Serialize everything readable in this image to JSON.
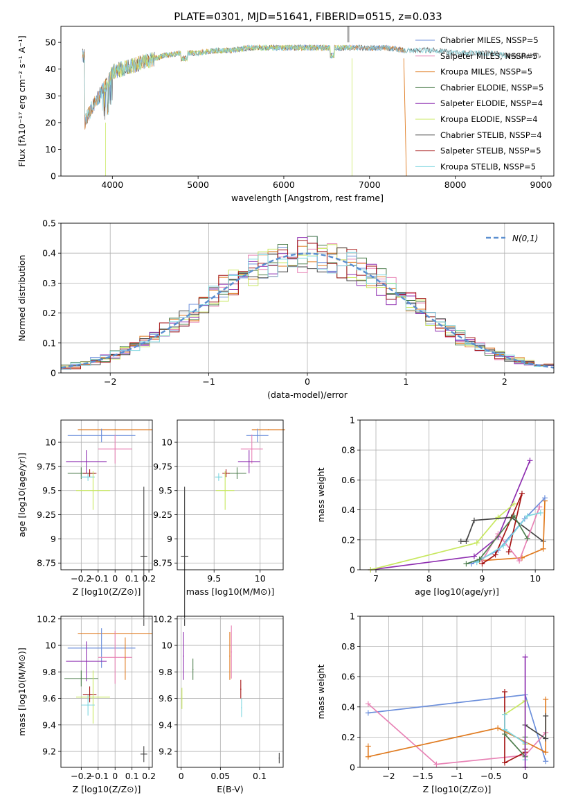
{
  "figure_title": "PLATE=0301, MJD=51641, FIBERID=0515, z=0.033",
  "colors": {
    "chabrier_miles": "#6c8fdb",
    "salpeter_miles": "#e882b5",
    "kroupa_miles": "#e07b20",
    "chabrier_elodie": "#4f7f4f",
    "salpeter_elodie": "#8e2eb0",
    "kroupa_elodie": "#c8e860",
    "chabrier_stelib": "#444444",
    "salpeter_stelib": "#a51515",
    "kroupa_stelib": "#7fd6e0",
    "normal": "#5b8fd0"
  },
  "chart_data": [
    {
      "id": "spectrum",
      "type": "line",
      "xlabel": "wavelength [Angstrom, rest frame]",
      "ylabel": "Flux [fλ10⁻¹⁷ erg cm⁻² s⁻¹ A⁻¹]",
      "xlim": [
        3400,
        9150
      ],
      "ylim": [
        0,
        56
      ],
      "xticks": [
        4000,
        5000,
        6000,
        7000,
        8000,
        9000
      ],
      "yticks": [
        0,
        10,
        20,
        30,
        40,
        50
      ],
      "grid": false,
      "legend_placement": "top-right",
      "legend": [
        "Chabrier MILES, NSSP=5",
        "Salpeter MILES, NSSP=5",
        "Kroupa MILES, NSSP=5",
        "Chabrier ELODIE, NSSP=5",
        "Salpeter ELODIE, NSSP=4",
        "Kroupa ELODIE, NSSP=4",
        "Chabrier STELIB, NSSP=4",
        "Salpeter STELIB, NSSP=5",
        "Kroupa STELIB, NSSP=5"
      ],
      "series": [
        {
          "name": "Chabrier STELIB, NSSP=4",
          "color_key": "chabrier_stelib",
          "x_range": [
            3650,
            9000
          ]
        },
        {
          "name": "Chabrier MILES, NSSP=5",
          "color_key": "chabrier_miles",
          "x_range": [
            3650,
            7400
          ]
        },
        {
          "name": "Kroupa MILES, NSSP=5",
          "color_key": "kroupa_miles",
          "x_range": [
            3650,
            7420
          ]
        },
        {
          "name": "Kroupa ELODIE, NSSP=4",
          "color_key": "kroupa_elodie",
          "x_range": [
            3900,
            6800
          ]
        },
        {
          "name": "Kroupa STELIB, NSSP=5",
          "color_key": "kroupa_stelib",
          "x_range": [
            3650,
            8600
          ]
        }
      ],
      "envelope": {
        "x": [
          3680,
          3750,
          3800,
          3850,
          3900,
          3950,
          4000,
          4100,
          4200,
          4300,
          4400,
          4600,
          4800,
          5000,
          5200,
          5400,
          5600,
          5800,
          6000,
          6200,
          6400,
          6600,
          6800,
          7000,
          7200,
          7400,
          7600,
          7800,
          8000,
          8200,
          8400,
          8600,
          8800,
          9000
        ],
        "y": [
          20,
          25,
          28,
          30,
          33,
          35,
          39,
          40,
          41,
          42,
          43,
          45,
          46,
          46,
          47,
          47,
          48,
          48,
          48,
          48,
          48,
          48,
          48,
          48,
          48,
          47,
          47,
          47,
          46,
          46,
          46,
          45,
          45,
          45
        ]
      }
    },
    {
      "id": "residuals",
      "type": "bar",
      "xlabel": "(data-model)/error",
      "ylabel": "Normed distribution",
      "xlim": [
        -2.5,
        2.5
      ],
      "ylim": [
        0,
        0.5
      ],
      "xticks": [
        -2,
        -1,
        0,
        1,
        2
      ],
      "yticks": [
        0.0,
        0.1,
        0.2,
        0.3,
        0.4,
        0.5
      ],
      "grid": true,
      "legend_placement": "top-right",
      "legend": [
        "N(0,1)"
      ],
      "bin_width": 0.1
    },
    {
      "id": "age-vs-Z",
      "type": "scatter",
      "xlabel": "Z [log10(Z/Z⊙)]",
      "ylabel": "age  [log10(age/yr)]",
      "xlim": [
        -0.32,
        0.22
      ],
      "ylim": [
        8.68,
        10.23
      ],
      "xticks": [
        -0.2,
        -0.1,
        0.0,
        0.1,
        0.2
      ],
      "yticks": [
        8.75,
        9.0,
        9.25,
        9.5,
        9.75,
        10.0
      ],
      "grid": true,
      "points": [
        {
          "series": "Kroupa MILES",
          "x": 0.0,
          "xerr": 0.22,
          "y": 10.13,
          "yerr": 0.0
        },
        {
          "series": "Chabrier MILES",
          "x": -0.08,
          "xerr": 0.2,
          "y": 10.07,
          "yerr": 0.07
        },
        {
          "series": "Salpeter MILES",
          "x": 0.0,
          "xerr": 0.1,
          "y": 9.93,
          "yerr": 0.15
        },
        {
          "series": "Salpeter ELODIE",
          "x": -0.17,
          "xerr": 0.12,
          "y": 9.8,
          "yerr": 0.12
        },
        {
          "series": "Chabrier ELODIE",
          "x": -0.2,
          "xerr": 0.08,
          "y": 9.68,
          "yerr": 0.06
        },
        {
          "series": "Salpeter STELIB",
          "x": -0.15,
          "xerr": 0.04,
          "y": 9.68,
          "yerr": 0.04
        },
        {
          "series": "Kroupa STELIB",
          "x": -0.16,
          "xerr": 0.04,
          "y": 9.64,
          "yerr": 0.04
        },
        {
          "series": "Kroupa ELODIE",
          "x": -0.13,
          "xerr": 0.1,
          "y": 9.5,
          "yerr": 0.2
        },
        {
          "series": "Chabrier STELIB",
          "x": 0.17,
          "xerr": 0.02,
          "y": 8.82,
          "yerr": 0.72
        }
      ]
    },
    {
      "id": "age-vs-mass",
      "type": "scatter",
      "xlabel": "mass [log10(M/M⊙)]",
      "ylabel": "",
      "xlim": [
        9.1,
        10.25
      ],
      "ylim": [
        8.68,
        10.23
      ],
      "xticks": [
        9.5,
        10.0
      ],
      "yticks": [
        8.75,
        9.0,
        9.25,
        9.5,
        9.75,
        10.0
      ],
      "grid": true,
      "points": [
        {
          "series": "Kroupa MILES",
          "x": 10.09,
          "xerr": 0.18,
          "y": 10.13,
          "yerr": 0.0
        },
        {
          "series": "Chabrier MILES",
          "x": 9.97,
          "xerr": 0.12,
          "y": 10.07,
          "yerr": 0.07
        },
        {
          "series": "Salpeter MILES",
          "x": 9.91,
          "xerr": 0.12,
          "y": 9.93,
          "yerr": 0.15
        },
        {
          "series": "Salpeter ELODIE",
          "x": 9.88,
          "xerr": 0.12,
          "y": 9.8,
          "yerr": 0.12
        },
        {
          "series": "Chabrier ELODIE",
          "x": 9.75,
          "xerr": 0.1,
          "y": 9.68,
          "yerr": 0.06
        },
        {
          "series": "Salpeter STELIB",
          "x": 9.63,
          "xerr": 0.04,
          "y": 9.68,
          "yerr": 0.04
        },
        {
          "series": "Kroupa STELIB",
          "x": 9.55,
          "xerr": 0.04,
          "y": 9.64,
          "yerr": 0.04
        },
        {
          "series": "Kroupa ELODIE",
          "x": 9.62,
          "xerr": 0.1,
          "y": 9.5,
          "yerr": 0.2
        },
        {
          "series": "Chabrier STELIB",
          "x": 9.18,
          "xerr": 0.04,
          "y": 8.82,
          "yerr": 0.72
        }
      ]
    },
    {
      "id": "massweight-vs-age",
      "type": "line",
      "xlabel": "age  [log10(age/yr)]",
      "ylabel": "mass weight",
      "xlim": [
        6.7,
        10.35
      ],
      "ylim": [
        0.0,
        1.0
      ],
      "xticks": [
        7,
        8,
        9,
        10
      ],
      "yticks": [
        0.0,
        0.2,
        0.4,
        0.6,
        0.8,
        1.0
      ],
      "grid": true,
      "series": [
        {
          "name": "Salpeter ELODIE",
          "color_key": "salpeter_elodie",
          "x": [
            6.9,
            8.85,
            9.3,
            9.9
          ],
          "y": [
            0.0,
            0.09,
            0.22,
            0.73
          ]
        },
        {
          "name": "Kroupa ELODIE",
          "color_key": "kroupa_elodie",
          "x": [
            6.9,
            8.9,
            9.3,
            9.6
          ],
          "y": [
            0.0,
            0.18,
            0.35,
            0.44
          ]
        },
        {
          "name": "Chabrier STELIB",
          "color_key": "chabrier_stelib",
          "x": [
            8.6,
            8.7,
            8.85,
            9.55,
            10.15
          ],
          "y": [
            0.19,
            0.19,
            0.33,
            0.35,
            0.19
          ]
        },
        {
          "name": "Kroupa MILES",
          "color_key": "kroupa_miles",
          "x": [
            8.95,
            9.75,
            10.15,
            10.18
          ],
          "y": [
            0.06,
            0.08,
            0.14,
            0.46
          ]
        },
        {
          "name": "Chabrier MILES",
          "color_key": "chabrier_miles",
          "x": [
            8.8,
            9.3,
            9.8,
            10.18
          ],
          "y": [
            0.04,
            0.13,
            0.34,
            0.48
          ]
        },
        {
          "name": "Salpeter MILES",
          "color_key": "salpeter_miles",
          "x": [
            9.0,
            9.3,
            9.7,
            10.08
          ],
          "y": [
            0.06,
            0.24,
            0.06,
            0.42
          ]
        },
        {
          "name": "Salpeter STELIB",
          "color_key": "salpeter_stelib",
          "x": [
            9.0,
            9.25,
            9.75,
            9.5
          ],
          "y": [
            0.04,
            0.1,
            0.51,
            0.12
          ]
        },
        {
          "name": "Kroupa STELIB",
          "color_key": "kroupa_stelib",
          "x": [
            8.9,
            9.4,
            9.85,
            10.1
          ],
          "y": [
            0.05,
            0.16,
            0.36,
            0.38
          ]
        },
        {
          "name": "Chabrier ELODIE",
          "color_key": "chabrier_elodie",
          "x": [
            8.7,
            8.95,
            9.6,
            9.85
          ],
          "y": [
            0.04,
            0.07,
            0.36,
            0.21
          ]
        }
      ]
    },
    {
      "id": "mass-vs-Z",
      "type": "scatter",
      "xlabel": "Z [log10(Z/Z⊙)]",
      "ylabel": "mass [log10(M/M⊙)]",
      "xlim": [
        -0.32,
        0.22
      ],
      "ylim": [
        9.08,
        10.22
      ],
      "xticks": [
        -0.2,
        -0.1,
        0.0,
        0.1,
        0.2
      ],
      "yticks": [
        9.2,
        9.4,
        9.6,
        9.8,
        10.0,
        10.2
      ],
      "grid": true,
      "points": [
        {
          "series": "Kroupa MILES",
          "x": 0.0,
          "xerr": 0.22,
          "y": 10.09,
          "yerr": 0.0
        },
        {
          "series": "Chabrier MILES",
          "x": -0.08,
          "xerr": 0.2,
          "y": 9.98,
          "yerr": 0.15
        },
        {
          "series": "Salpeter MILES",
          "x": 0.0,
          "xerr": 0.1,
          "y": 9.91,
          "yerr": 0.2
        },
        {
          "series": "Kroupa MILES",
          "x": 0.06,
          "xerr": 0.0,
          "y": 9.9,
          "yerr": 0.16
        },
        {
          "series": "Salpeter ELODIE",
          "x": -0.17,
          "xerr": 0.12,
          "y": 9.88,
          "yerr": 0.15
        },
        {
          "series": "Chabrier ELODIE",
          "x": -0.2,
          "xerr": 0.1,
          "y": 9.75,
          "yerr": 0.06
        },
        {
          "series": "Salpeter STELIB",
          "x": -0.15,
          "xerr": 0.04,
          "y": 9.63,
          "yerr": 0.06
        },
        {
          "series": "Kroupa ELODIE",
          "x": -0.13,
          "xerr": 0.1,
          "y": 9.61,
          "yerr": 0.2
        },
        {
          "series": "Kroupa STELIB",
          "x": -0.16,
          "xerr": 0.04,
          "y": 9.55,
          "yerr": 0.08
        },
        {
          "series": "Chabrier STELIB",
          "x": 0.17,
          "xerr": 0.02,
          "y": 9.18,
          "yerr": 0.06
        }
      ]
    },
    {
      "id": "mass-vs-EBV",
      "type": "scatter",
      "xlabel": "E(B-V)",
      "ylabel": "",
      "xlim": [
        -0.005,
        0.13
      ],
      "ylim": [
        9.08,
        10.22
      ],
      "xticks": [
        0.0,
        0.05,
        0.1
      ],
      "yticks": [
        9.2,
        9.4,
        9.6,
        9.8,
        10.0,
        10.2
      ],
      "grid": true,
      "points": [
        {
          "series": "Salpeter ELODIE",
          "x": 0.003,
          "y": 9.92,
          "yerr": 0.18
        },
        {
          "series": "Kroupa ELODIE",
          "x": 0.001,
          "y": 9.6,
          "yerr": 0.08
        },
        {
          "series": "Chabrier ELODIE",
          "x": 0.015,
          "y": 9.82,
          "yerr": 0.08
        },
        {
          "series": "Kroupa MILES",
          "x": 0.062,
          "y": 9.92,
          "yerr": 0.18
        },
        {
          "series": "Salpeter MILES",
          "x": 0.064,
          "y": 9.95,
          "yerr": 0.2
        },
        {
          "series": "Salpeter STELIB",
          "x": 0.076,
          "y": 9.67,
          "yerr": 0.07
        },
        {
          "series": "Kroupa STELIB",
          "x": 0.077,
          "y": 9.53,
          "yerr": 0.07
        },
        {
          "series": "Chabrier STELIB",
          "x": 0.125,
          "y": 9.15,
          "yerr": 0.04
        }
      ]
    },
    {
      "id": "massweight-vs-Z",
      "type": "line",
      "xlabel": "Z [log10(Z/Z⊙)]",
      "ylabel": "mass weight",
      "xlim": [
        -2.42,
        0.42
      ],
      "ylim": [
        0.0,
        1.0
      ],
      "xticks": [
        -2.0,
        -1.5,
        -1.0,
        -0.5,
        0.0
      ],
      "yticks": [
        0.0,
        0.2,
        0.4,
        0.6,
        0.8,
        1.0
      ],
      "grid": true,
      "series": [
        {
          "name": "Chabrier MILES",
          "color_key": "chabrier_miles",
          "x": [
            -2.3,
            0.0,
            0.3
          ],
          "y": [
            0.36,
            0.48,
            0.04
          ]
        },
        {
          "name": "Salpeter MILES",
          "color_key": "salpeter_miles",
          "x": [
            -2.3,
            -1.3,
            0.0,
            0.3
          ],
          "y": [
            0.42,
            0.02,
            0.08,
            0.23
          ]
        },
        {
          "name": "Kroupa MILES",
          "color_key": "kroupa_miles",
          "x": [
            -2.3,
            -2.3,
            -0.4,
            0.3,
            0.3
          ],
          "y": [
            0.14,
            0.07,
            0.26,
            0.1,
            0.45
          ]
        },
        {
          "name": "Kroupa ELODIE",
          "color_key": "kroupa_elodie",
          "x": [
            -0.3,
            0.0,
            0.0
          ],
          "y": [
            0.35,
            0.44,
            0.15
          ]
        },
        {
          "name": "Salpeter STELIB",
          "color_key": "salpeter_stelib",
          "x": [
            -0.3,
            -0.3,
            0.0,
            0.0
          ],
          "y": [
            0.5,
            0.03,
            0.1,
            0.12
          ]
        },
        {
          "name": "Kroupa STELIB",
          "color_key": "kroupa_stelib",
          "x": [
            -0.3,
            -0.3,
            0.0,
            0.0
          ],
          "y": [
            0.35,
            0.25,
            0.16,
            0.05
          ]
        },
        {
          "name": "Chabrier ELODIE",
          "color_key": "chabrier_elodie",
          "x": [
            -0.3,
            0.0,
            0.0
          ],
          "y": [
            0.22,
            0.07,
            0.2
          ]
        },
        {
          "name": "Chabrier STELIB",
          "color_key": "chabrier_stelib",
          "x": [
            0.0,
            0.3,
            0.3
          ],
          "y": [
            0.28,
            0.19,
            0.34
          ]
        },
        {
          "name": "Salpeter ELODIE",
          "color_key": "salpeter_elodie",
          "x": [
            0.0,
            0.0
          ],
          "y": [
            0.0,
            0.73
          ]
        }
      ]
    }
  ]
}
